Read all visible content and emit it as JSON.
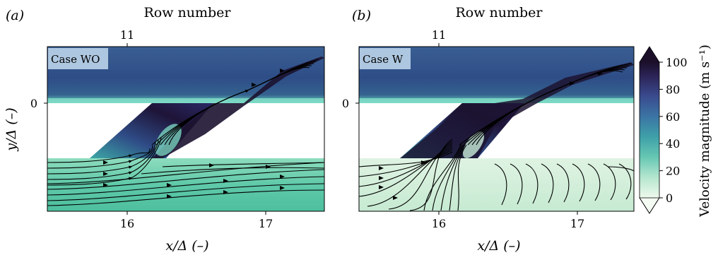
{
  "chart_data": [
    {
      "type": "heatmap",
      "panel_label": "(a)",
      "case_label": "Case WO",
      "xlabel": "x/Δ (–)",
      "top_xlabel": "Row number",
      "ylabel": "y/Δ (–)",
      "xlim": [
        15.42,
        17.42
      ],
      "xticks": [
        "16",
        "17"
      ],
      "top_xticks": [
        "11"
      ],
      "yticks": [
        "0"
      ],
      "streamline_pattern": "parallel flow along coolant channel, turning into slot"
    },
    {
      "type": "heatmap",
      "panel_label": "(b)",
      "case_label": "Case W",
      "xlabel": "x/Δ (–)",
      "top_xlabel": "Row number",
      "xlim": [
        15.42,
        17.42
      ],
      "xticks": [
        "16",
        "17"
      ],
      "top_xticks": [
        "11"
      ],
      "yticks": [
        "0"
      ],
      "streamline_pattern": "converging flow from channel into slot, recirculating arcs"
    }
  ],
  "colorbar": {
    "label": "Velocity magnitude (m s⁻¹)",
    "ticks": [
      "0",
      "20",
      "40",
      "60",
      "80",
      "100"
    ],
    "range": [
      0,
      100
    ],
    "colors": [
      "#e9f7e6",
      "#a8e2cc",
      "#55bfb1",
      "#3d96a8",
      "#3b6aa0",
      "#3a3f7e",
      "#241640"
    ]
  },
  "colors": {
    "mainstream": "#2f5a8e",
    "mainstream_dark": "#23306a",
    "jet_core": "#1a0f2e",
    "coolant_a": "#5cc8a6",
    "coolant_b": "#d6f0dd",
    "wall_band": "#7ee3c8",
    "case_box": "#aec7e0"
  }
}
